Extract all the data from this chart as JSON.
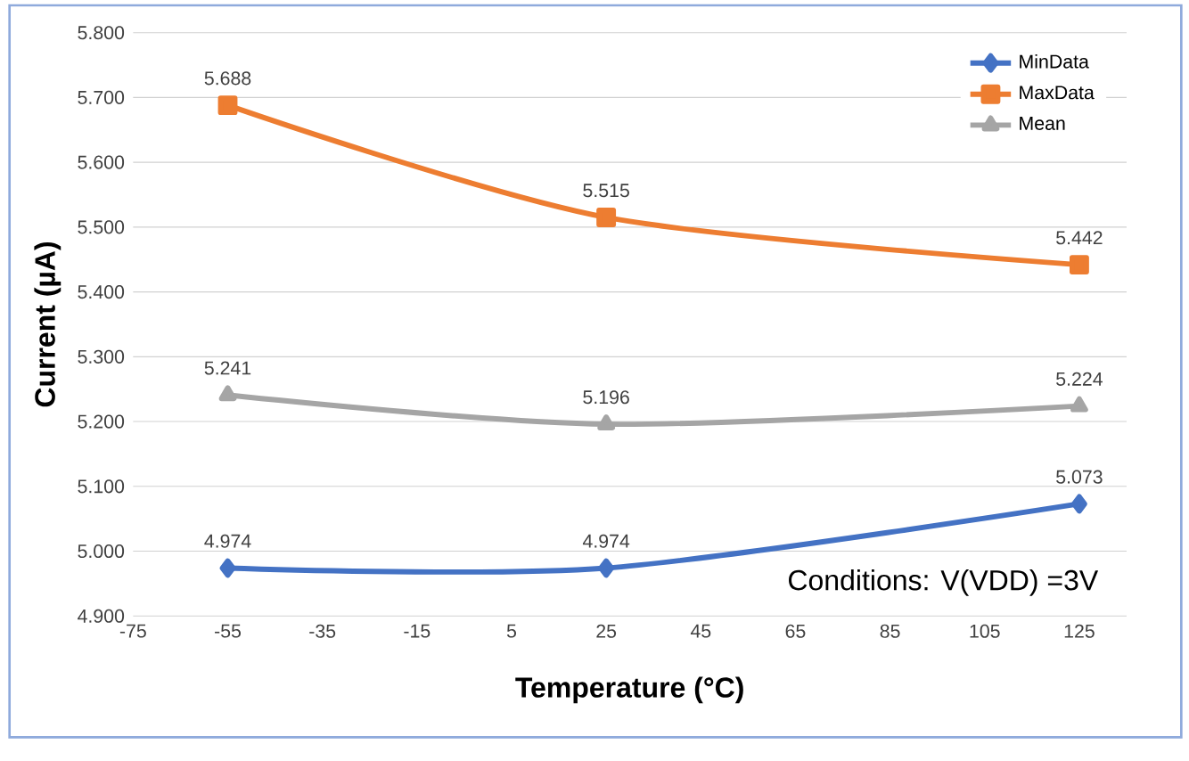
{
  "chart_data": {
    "type": "line",
    "xlabel": "Temperature (°C)",
    "ylabel": "Current (µA)",
    "x": [
      -55,
      25,
      125
    ],
    "series": [
      {
        "name": "MinData",
        "color": "#4472c4",
        "marker": "diamond",
        "values": [
          4.974,
          4.974,
          5.073
        ]
      },
      {
        "name": "MaxData",
        "color": "#ed7d31",
        "marker": "square",
        "values": [
          5.688,
          5.515,
          5.442
        ]
      },
      {
        "name": "Mean",
        "color": "#a5a5a5",
        "marker": "triangle",
        "values": [
          5.241,
          5.196,
          5.224
        ]
      }
    ],
    "xlim": [
      -75,
      135
    ],
    "xticks": [
      -75,
      -55,
      -35,
      -15,
      5,
      25,
      45,
      65,
      85,
      105,
      125
    ],
    "ylim": [
      4.9,
      5.8
    ],
    "yticks": [
      {
        "value": 4.9,
        "label": "4.900"
      },
      {
        "value": 5.0,
        "label": "5.000"
      },
      {
        "value": 5.1,
        "label": "5.100"
      },
      {
        "value": 5.2,
        "label": "5.200"
      },
      {
        "value": 5.3,
        "label": "5.300"
      },
      {
        "value": 5.4,
        "label": "5.400"
      },
      {
        "value": 5.5,
        "label": "5.500"
      },
      {
        "value": 5.6,
        "label": "5.600"
      },
      {
        "value": 5.7,
        "label": "5.700"
      },
      {
        "value": 5.8,
        "label": "5.800"
      }
    ],
    "grid": "y",
    "legend": "top right",
    "data_labels": true,
    "line_style": "solid",
    "annotations": [
      "Conditions: V(VDD) =3V"
    ]
  }
}
